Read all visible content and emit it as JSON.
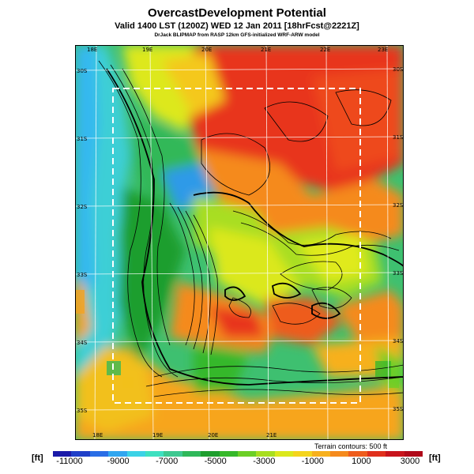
{
  "header": {
    "title": "OvercastDevelopment Potential",
    "subtitle": "Valid 1400 LST (1200Z) WED 12 Jan 2011 [18hrFcst@2221Z]",
    "model_line": "DrJack BLIPMAP from RASP 12km GFS-initialized WRF-ARW model"
  },
  "map": {
    "lon_labels_top": [
      "18E",
      "19E",
      "20E",
      "21E",
      "22E",
      "23E"
    ],
    "lon_labels_bottom": [
      "18E",
      "19E",
      "20E",
      "21E"
    ],
    "lat_labels_left": [
      "30S",
      "31S",
      "32S",
      "33S",
      "34S",
      "35S"
    ],
    "lat_labels_right": [
      "30S",
      "31S",
      "32S",
      "33S",
      "34S",
      "35S"
    ],
    "terrain_note": "Terrain contours: 500 ft"
  },
  "colorbar": {
    "unit_left": "[ft]",
    "unit_right": "[ft]",
    "tick_labels": [
      "-11000",
      "-9000",
      "-7000",
      "-5000",
      "-3000",
      "-1000",
      "1000",
      "3000"
    ],
    "colors": [
      "#1a1aa8",
      "#1f3fc8",
      "#2a6ee6",
      "#31a6f0",
      "#3bd2e6",
      "#3ee0c0",
      "#3ec890",
      "#2fb85a",
      "#1e9e2e",
      "#36b82a",
      "#6ccf26",
      "#a8de20",
      "#dbe81c",
      "#f4d41c",
      "#f7b01c",
      "#f58a1c",
      "#ee5c1c",
      "#e0301c",
      "#c8141c",
      "#b00a1a"
    ]
  }
}
